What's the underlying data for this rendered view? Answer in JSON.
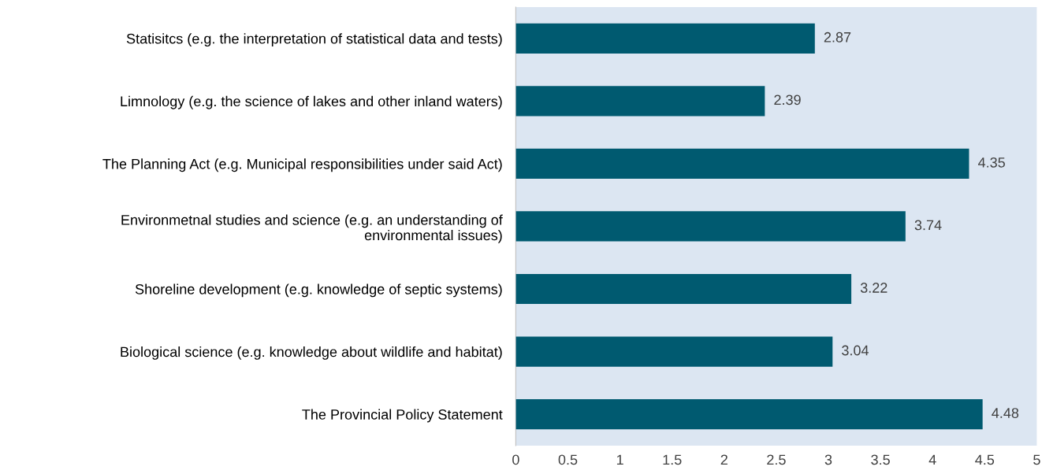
{
  "chart_data": {
    "type": "bar",
    "orientation": "horizontal",
    "categories": [
      "Statisitcs (e.g. the interpretation of statistical data and tests)",
      "Limnology (e.g. the science of lakes and other inland waters)",
      "The Planning Act (e.g. Municipal responsibilities under said Act)",
      "Environmetnal studies and science (e.g. an understanding of\nenvironmental issues)",
      "Shoreline development (e.g. knowledge of septic systems)",
      "Biological science (e.g. knowledge about wildlife and habitat)",
      "The Provincial Policy Statement"
    ],
    "values": [
      2.87,
      2.39,
      4.35,
      3.74,
      3.22,
      3.04,
      4.48
    ],
    "color": "#005a70",
    "data_labels": true,
    "xlim": [
      0,
      5
    ],
    "xticks": [
      0,
      0.5,
      1,
      1.5,
      2,
      2.5,
      3,
      3.5,
      4,
      4.5,
      5
    ],
    "grid": false
  }
}
